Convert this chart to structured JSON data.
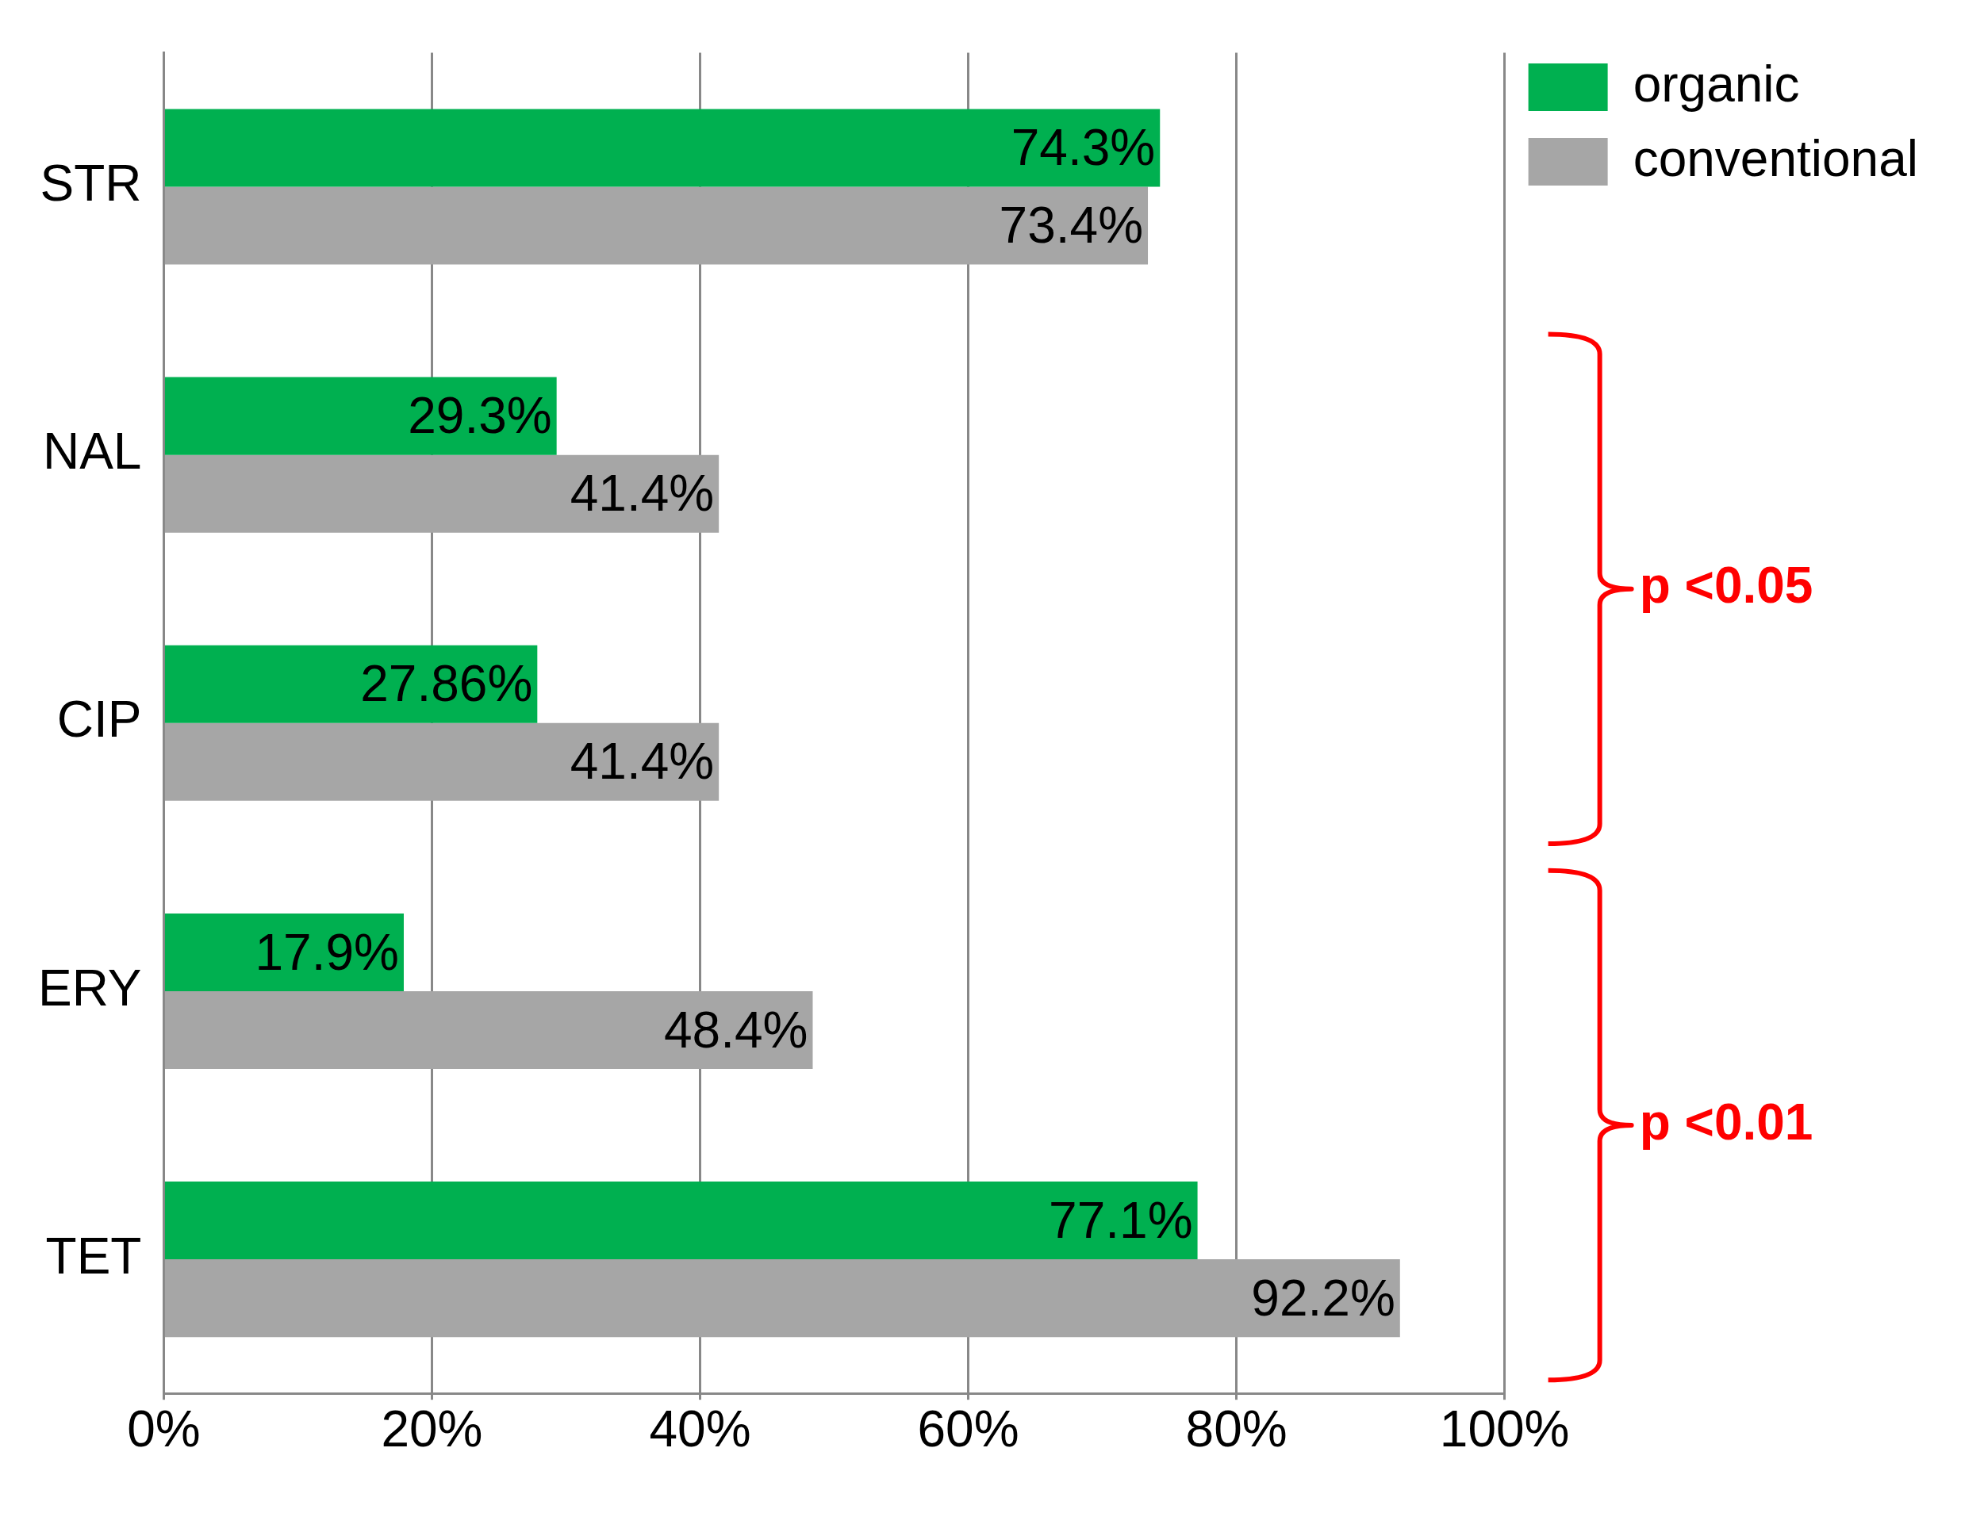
{
  "chart_data": {
    "type": "bar",
    "orientation": "horizontal",
    "categories": [
      "STR",
      "NAL",
      "CIP",
      "ERY",
      "TET"
    ],
    "series": [
      {
        "name": "organic",
        "color": "#00b050",
        "values": [
          74.3,
          29.3,
          27.86,
          17.9,
          77.1
        ],
        "value_labels": [
          "74.3%",
          "29.3%",
          "27.86%",
          "17.9%",
          "77.1%"
        ]
      },
      {
        "name": "conventional",
        "color": "#a6a6a6",
        "values": [
          73.4,
          41.4,
          41.4,
          48.4,
          92.2
        ],
        "value_labels": [
          "73.4%",
          "41.4%",
          "41.4%",
          "48.4%",
          "92.2%"
        ]
      }
    ],
    "xlim": [
      0,
      100
    ],
    "xticks": [
      {
        "value": 0,
        "label": "0%"
      },
      {
        "value": 20,
        "label": "20%"
      },
      {
        "value": 40,
        "label": "40%"
      },
      {
        "value": 60,
        "label": "60%"
      },
      {
        "value": 80,
        "label": "80%"
      },
      {
        "value": 100,
        "label": "100%"
      }
    ],
    "grid": "x",
    "legend": "top right",
    "annotations": [
      "p <0.05",
      "p <0.01"
    ]
  }
}
